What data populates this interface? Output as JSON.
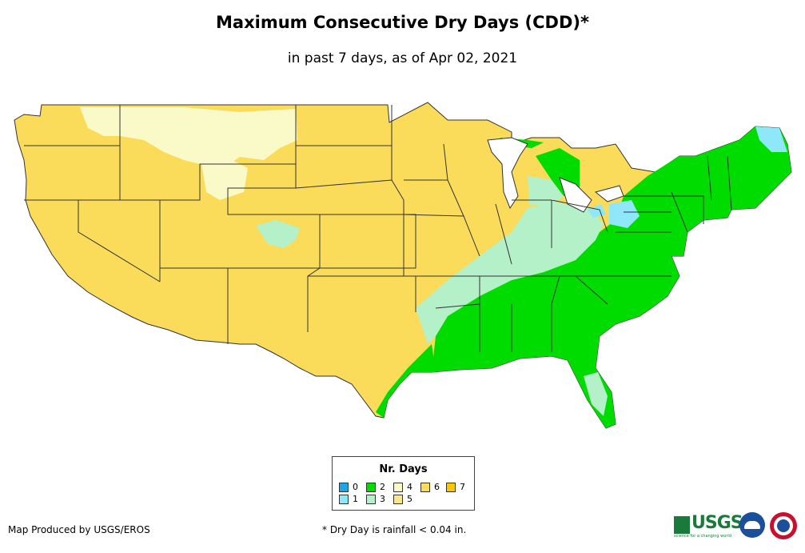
{
  "title": "Maximum Consecutive Dry Days (CDD)*",
  "subtitle": "in past 7 days, as of Apr 02, 2021",
  "map": {
    "regions": [
      {
        "name": "west-and-plains",
        "category": "6"
      },
      {
        "name": "rockies-highlands",
        "category": "4"
      },
      {
        "name": "south-and-east",
        "category": "2"
      },
      {
        "name": "transition-band",
        "category": "3"
      },
      {
        "name": "ohio-valley",
        "category": "3"
      },
      {
        "name": "northern-maine",
        "category": "1"
      },
      {
        "name": "west-virginia",
        "category": "1"
      },
      {
        "name": "lake-erie-shore",
        "category": "1"
      },
      {
        "name": "colorado-patches",
        "category": "3"
      }
    ]
  },
  "legend": {
    "title": "Nr. Days",
    "items": [
      {
        "label": "0",
        "color": "#1ea6e6"
      },
      {
        "label": "1",
        "color": "#8fe8fa"
      },
      {
        "label": "2",
        "color": "#00dc00"
      },
      {
        "label": "3",
        "color": "#b4f0c8"
      },
      {
        "label": "4",
        "color": "#fafac8"
      },
      {
        "label": "5",
        "color": "#fae68c"
      },
      {
        "label": "6",
        "color": "#fadc5a"
      },
      {
        "label": "7",
        "color": "#fac800"
      }
    ]
  },
  "footer": {
    "credit": "Map Produced by USGS/EROS",
    "note": "* Dry Day is rainfall < 0.04 in."
  },
  "logos": {
    "usgs_text": "USGS",
    "usgs_tagline": "science for a changing world"
  }
}
